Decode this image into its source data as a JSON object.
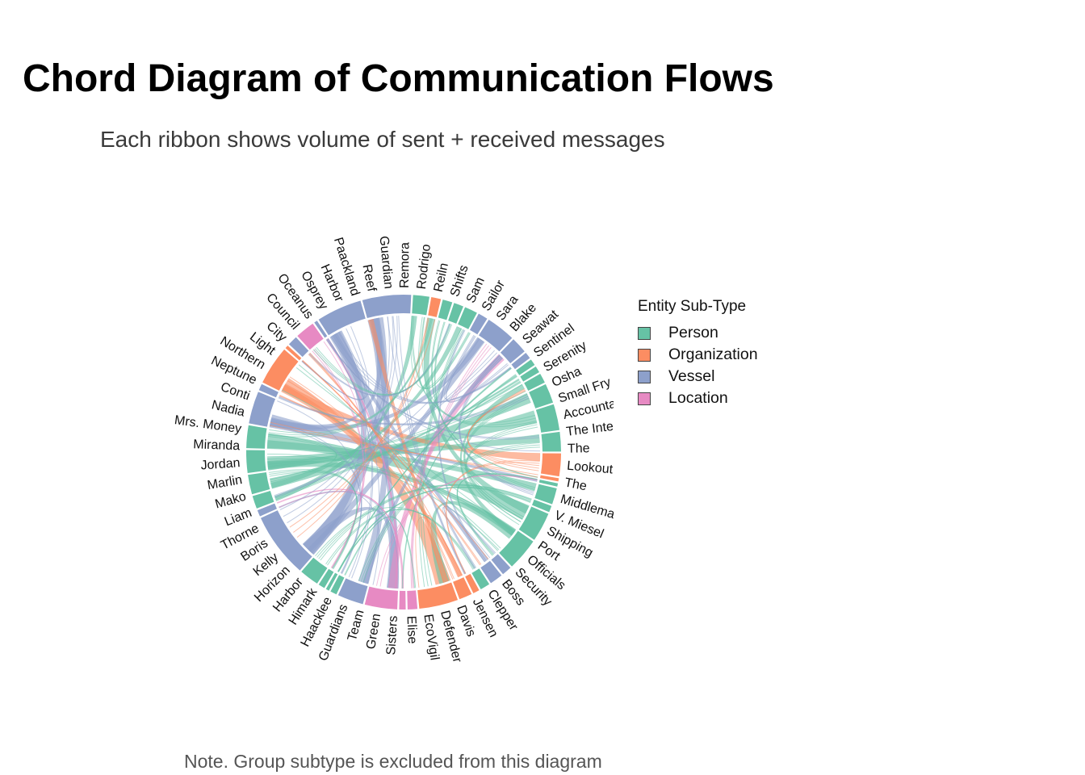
{
  "title": "Chord Diagram of Communication Flows",
  "subtitle": "Each ribbon shows volume of sent + received messages",
  "note": "Note. Group subtype is excluded from this diagram",
  "colors": {
    "Person": "#66c2a5",
    "Organization": "#fc8d62",
    "Vessel": "#8da0cb",
    "Location": "#e78ac3"
  },
  "chart_data": {
    "type": "chord",
    "title": "Chord Diagram of Communication Flows",
    "subtitle": "Each ribbon shows volume of sent + received messages",
    "legend": {
      "title": "Entity Sub-Type",
      "placement": "right",
      "entries": [
        "Person",
        "Organization",
        "Vessel",
        "Location"
      ]
    },
    "segments": [
      {
        "name": "Rodrigo",
        "type": "Person",
        "value": 5
      },
      {
        "name": "Liam",
        "type": "Organization",
        "value": 3
      },
      {
        "name": "Shifts",
        "type": "Person",
        "value": 3
      },
      {
        "name": "Sam",
        "type": "Person",
        "value": 3
      },
      {
        "name": "Sailor",
        "type": "Person",
        "value": 4
      },
      {
        "name": "Blake",
        "type": "Vessel",
        "value": 3
      },
      {
        "name": "Seawatch",
        "type": "Vessel",
        "value": 9
      },
      {
        "name": "Sentinel",
        "type": "Vessel",
        "value": 5
      },
      {
        "name": "Serenity",
        "type": "Vessel",
        "value": 2
      },
      {
        "name": "Osha",
        "type": "Person",
        "value": 2
      },
      {
        "name": "Small Fry",
        "type": "Person",
        "value": 2
      },
      {
        "name": "Accountant",
        "type": "Person",
        "value": 3
      },
      {
        "name": "The Intern",
        "type": "Person",
        "value": 6
      },
      {
        "name": "The Lookout",
        "type": "Person",
        "value": 8
      },
      {
        "name": "The Middleman",
        "type": "Person",
        "value": 6
      },
      {
        "name": "V. Miesel Shipping",
        "type": "Organization",
        "value": 7
      },
      {
        "name": "Port",
        "type": "Organization",
        "value": 1
      },
      {
        "name": "Port Officials",
        "type": "Person",
        "value": 1
      },
      {
        "name": "Security",
        "type": "Person",
        "value": 5
      },
      {
        "name": "Boss",
        "type": "Person",
        "value": 2
      },
      {
        "name": "Clepper Jensen",
        "type": "Person",
        "value": 9
      },
      {
        "name": "Davis",
        "type": "Person",
        "value": 10
      },
      {
        "name": "Defender",
        "type": "Vessel",
        "value": 3
      },
      {
        "name": "EcoVigil",
        "type": "Vessel",
        "value": 4
      },
      {
        "name": "Elise",
        "type": "Person",
        "value": 3
      },
      {
        "name": "Sisters",
        "type": "Organization",
        "value": 2
      },
      {
        "name": "Green Team",
        "type": "Organization",
        "value": 4
      },
      {
        "name": "Guardians",
        "type": "Organization",
        "value": 12
      },
      {
        "name": "Haacklee",
        "type": "Location",
        "value": 3
      },
      {
        "name": "Himark",
        "type": "Location",
        "value": 2
      },
      {
        "name": "Harbor",
        "type": "Location",
        "value": 10
      },
      {
        "name": "Horizon",
        "type": "Vessel",
        "value": 8
      },
      {
        "name": "Kelly",
        "type": "Person",
        "value": 2
      },
      {
        "name": "Boris",
        "type": "Person",
        "value": 1
      },
      {
        "name": "Thorne",
        "type": "Person",
        "value": 2
      },
      {
        "name": "Liam",
        "type": "Person",
        "value": 6
      },
      {
        "name": "Mako",
        "type": "Vessel",
        "value": 20
      },
      {
        "name": "Marlin",
        "type": "Vessel",
        "value": 2
      },
      {
        "name": "Jordan",
        "type": "Person",
        "value": 4
      },
      {
        "name": "Miranda",
        "type": "Person",
        "value": 6
      },
      {
        "name": "Mrs. Money",
        "type": "Person",
        "value": 7
      },
      {
        "name": "Nadia Conti",
        "type": "Person",
        "value": 7
      },
      {
        "name": "Neptune",
        "type": "Vessel",
        "value": 10
      },
      {
        "name": "Northern Light",
        "type": "Vessel",
        "value": 2
      },
      {
        "name": "City Council",
        "type": "Organization",
        "value": 12
      },
      {
        "name": "Oceanus",
        "type": "Organization",
        "value": 1
      },
      {
        "name": "Osprey",
        "type": "Vessel",
        "value": 3
      },
      {
        "name": "Harbor",
        "type": "Location",
        "value": 6
      },
      {
        "name": "Paackland",
        "type": "Vessel",
        "value": 1
      },
      {
        "name": "Reef Guardian",
        "type": "Vessel",
        "value": 14
      },
      {
        "name": "Remora",
        "type": "Vessel",
        "value": 15
      }
    ],
    "labels": [
      {
        "text": "Rodrigo"
      },
      {
        "text": "Reiln"
      },
      {
        "text": "Shifts"
      },
      {
        "text": "Sam"
      },
      {
        "text": "Sailor"
      },
      {
        "text": "Sara"
      },
      {
        "text": "Blake"
      },
      {
        "text": "Seawat"
      },
      {
        "text": "Sentinel"
      },
      {
        "text": "Serenity"
      },
      {
        "text": "Osha"
      },
      {
        "text": "Small Fry"
      },
      {
        "text": "Accountant"
      },
      {
        "text": "The Intern"
      },
      {
        "text": "The"
      },
      {
        "text": "Lookout"
      },
      {
        "text": "The"
      },
      {
        "text": "Middleman"
      },
      {
        "text": "V. Miesel"
      },
      {
        "text": "Shipping"
      },
      {
        "text": "Port"
      },
      {
        "text": "Officials"
      },
      {
        "text": "Security"
      },
      {
        "text": "Boss"
      },
      {
        "text": "Clepper"
      },
      {
        "text": "Jensen"
      },
      {
        "text": "Davis"
      },
      {
        "text": "Defender"
      },
      {
        "text": "EcoVigil"
      },
      {
        "text": "Elise"
      },
      {
        "text": "Sisters"
      },
      {
        "text": "Green"
      },
      {
        "text": "Team"
      },
      {
        "text": "Guardians"
      },
      {
        "text": "Haacklee"
      },
      {
        "text": "Himark"
      },
      {
        "text": "Harbor"
      },
      {
        "text": "Horizon"
      },
      {
        "text": "Kelly"
      },
      {
        "text": "Boris"
      },
      {
        "text": "Thorne"
      },
      {
        "text": "Liam"
      },
      {
        "text": "Mako"
      },
      {
        "text": "Marlin"
      },
      {
        "text": "Jordan"
      },
      {
        "text": "Miranda"
      },
      {
        "text": "Mrs. Money"
      },
      {
        "text": "Nadia"
      },
      {
        "text": "Conti"
      },
      {
        "text": "Neptune"
      },
      {
        "text": "Northern"
      },
      {
        "text": "Light"
      },
      {
        "text": "City"
      },
      {
        "text": "Council"
      },
      {
        "text": "Oceanus"
      },
      {
        "text": "Osprey"
      },
      {
        "text": "Harbor"
      },
      {
        "text": "Paackland"
      },
      {
        "text": "Reef"
      },
      {
        "text": "Guardian"
      },
      {
        "text": "Remora"
      }
    ],
    "ribbons": [
      {
        "from": "Mrs. Money",
        "to": "The Lookout",
        "value": 5
      },
      {
        "from": "Nadia Conti",
        "to": "Clepper Jensen",
        "value": 6
      },
      {
        "from": "Nadia Conti",
        "to": "Security",
        "value": 3
      },
      {
        "from": "Miranda",
        "to": "The Intern",
        "value": 4
      },
      {
        "from": "Mrs. Money",
        "to": "Davis",
        "value": 3
      },
      {
        "from": "Neptune",
        "to": "Port Officials",
        "value": 5
      },
      {
        "from": "Neptune",
        "to": "Seawatch",
        "value": 3
      },
      {
        "from": "City Council",
        "to": "Guardians",
        "value": 6
      },
      {
        "from": "City Council",
        "to": "V. Miesel Shipping",
        "value": 3
      },
      {
        "from": "City Council",
        "to": "Green Team",
        "value": 2
      },
      {
        "from": "Remora",
        "to": "Mako",
        "value": 6
      },
      {
        "from": "Remora",
        "to": "Horizon",
        "value": 4
      },
      {
        "from": "Remora",
        "to": "Neptune",
        "value": 3
      },
      {
        "from": "Reef Guardian",
        "to": "Mako",
        "value": 5
      },
      {
        "from": "Reef Guardian",
        "to": "Harbor",
        "value": 4
      },
      {
        "from": "Mako",
        "to": "Harbor",
        "value": 4
      },
      {
        "from": "Mako",
        "to": "Seawatch",
        "value": 3
      },
      {
        "from": "Davis",
        "to": "Guardians",
        "value": 4
      },
      {
        "from": "Clepper Jensen",
        "to": "Liam",
        "value": 3
      },
      {
        "from": "The Middleman",
        "to": "Mrs. Money",
        "value": 3
      },
      {
        "from": "Harbor",
        "to": "Sentinel",
        "value": 3
      },
      {
        "from": "Harbor",
        "to": "Paackland",
        "value": 1
      },
      {
        "from": "Rodrigo",
        "to": "Jordan",
        "value": 2
      },
      {
        "from": "Sailor",
        "to": "Miranda",
        "value": 2
      },
      {
        "from": "Horizon",
        "to": "Sentinel",
        "value": 2
      },
      {
        "from": "EcoVigil",
        "to": "Reef Guardian",
        "value": 2
      },
      {
        "from": "Accountant",
        "to": "Davis",
        "value": 2
      },
      {
        "from": "Guardians",
        "to": "Remora",
        "value": 2
      }
    ]
  }
}
